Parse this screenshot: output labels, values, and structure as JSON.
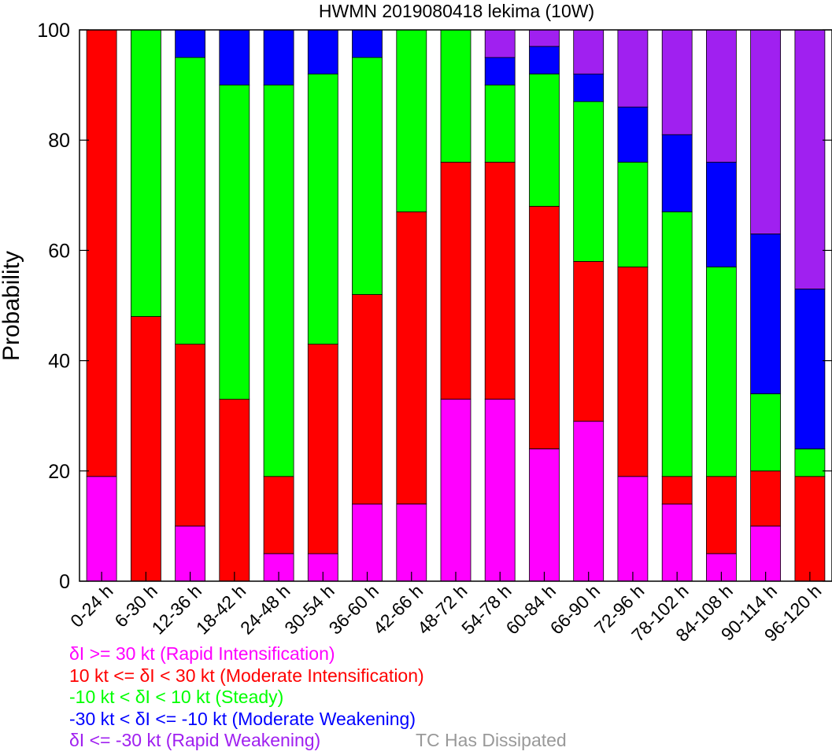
{
  "chart_data": {
    "type": "bar",
    "stacked": true,
    "title": "HWMN 2019080418 lekima (10W)",
    "ylabel": "Probability",
    "xlabel": "",
    "ylim": [
      0,
      100
    ],
    "yticks": [
      0,
      20,
      40,
      60,
      80,
      100
    ],
    "grid": false,
    "categories": [
      "0-24 h",
      "6-30 h",
      "12-36 h",
      "18-42 h",
      "24-48 h",
      "30-54 h",
      "36-60 h",
      "42-66 h",
      "48-72 h",
      "54-78 h",
      "60-84 h",
      "66-90 h",
      "72-96 h",
      "78-102 h",
      "84-108 h",
      "90-114 h",
      "96-120 h"
    ],
    "series": [
      {
        "name": "δI >= 30 kt (Rapid Intensification)",
        "color": "#ff00ff",
        "values": [
          19,
          0,
          10,
          0,
          5,
          5,
          14,
          14,
          33,
          33,
          24,
          29,
          19,
          14,
          5,
          10,
          0
        ]
      },
      {
        "name": "10 kt <= δI < 30 kt (Moderate Intensification)",
        "color": "#ff0000",
        "values": [
          81,
          48,
          33,
          33,
          14,
          38,
          38,
          53,
          43,
          43,
          44,
          29,
          38,
          5,
          14,
          10,
          19
        ]
      },
      {
        "name": "-10 kt < δI < 10 kt (Steady)",
        "color": "#00ff00",
        "values": [
          0,
          52,
          52,
          57,
          71,
          49,
          43,
          33,
          24,
          14,
          24,
          29,
          19,
          48,
          38,
          14,
          5
        ]
      },
      {
        "name": "-30 kt < δI <= -10 kt (Moderate Weakening)",
        "color": "#0000ff",
        "values": [
          0,
          0,
          5,
          10,
          10,
          8,
          5,
          0,
          0,
          5,
          5,
          5,
          10,
          14,
          19,
          29,
          29
        ]
      },
      {
        "name": "δI <= -30 kt (Rapid Weakening)",
        "color": "#a020f0",
        "values": [
          0,
          0,
          0,
          0,
          0,
          0,
          0,
          0,
          0,
          5,
          3,
          8,
          14,
          19,
          24,
          37,
          47
        ]
      }
    ],
    "note_text": "TC Has Dissipated",
    "note_color": "#999999"
  }
}
